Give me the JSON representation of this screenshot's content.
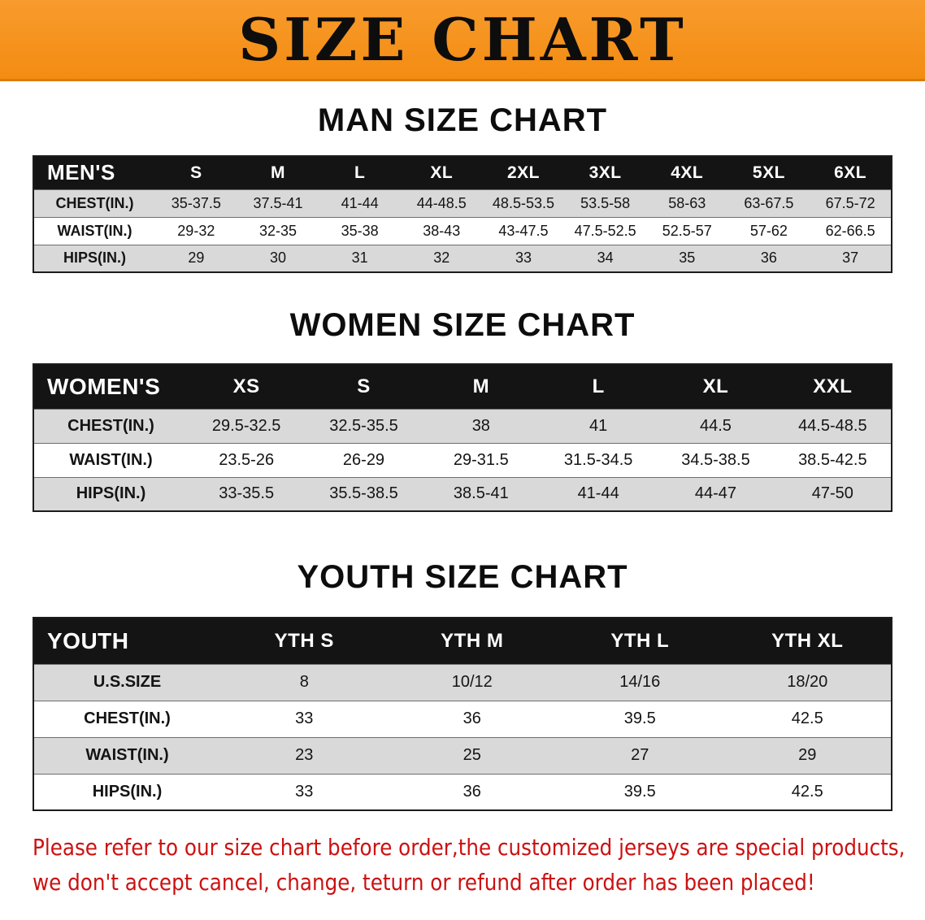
{
  "banner": {
    "title": "SIZE CHART"
  },
  "colors": {
    "banner_bg": "#F7941E",
    "table_header_bg": "#141414",
    "row_stripe": "#D9D9D9",
    "note_text": "#CC1111"
  },
  "sections": [
    {
      "heading": "MAN SIZE CHART",
      "table": {
        "header": [
          "MEN'S",
          "S",
          "M",
          "L",
          "XL",
          "2XL",
          "3XL",
          "4XL",
          "5XL",
          "6XL"
        ],
        "rows": [
          {
            "label": "CHEST(IN.)",
            "values": [
              "35-37.5",
              "37.5-41",
              "41-44",
              "44-48.5",
              "48.5-53.5",
              "53.5-58",
              "58-63",
              "63-67.5",
              "67.5-72"
            ]
          },
          {
            "label": "WAIST(IN.)",
            "values": [
              "29-32",
              "32-35",
              "35-38",
              "38-43",
              "43-47.5",
              "47.5-52.5",
              "52.5-57",
              "57-62",
              "62-66.5"
            ]
          },
          {
            "label": "HIPS(IN.)",
            "values": [
              "29",
              "30",
              "31",
              "32",
              "33",
              "34",
              "35",
              "36",
              "37"
            ]
          }
        ]
      }
    },
    {
      "heading": "WOMEN SIZE CHART",
      "table": {
        "header": [
          "WOMEN'S",
          "XS",
          "S",
          "M",
          "L",
          "XL",
          "XXL"
        ],
        "rows": [
          {
            "label": "CHEST(IN.)",
            "values": [
              "29.5-32.5",
              "32.5-35.5",
              "38",
              "41",
              "44.5",
              "44.5-48.5"
            ]
          },
          {
            "label": "WAIST(IN.)",
            "values": [
              "23.5-26",
              "26-29",
              "29-31.5",
              "31.5-34.5",
              "34.5-38.5",
              "38.5-42.5"
            ]
          },
          {
            "label": "HIPS(IN.)",
            "values": [
              "33-35.5",
              "35.5-38.5",
              "38.5-41",
              "41-44",
              "44-47",
              "47-50"
            ]
          }
        ]
      }
    },
    {
      "heading": "YOUTH SIZE CHART",
      "table": {
        "header": [
          "YOUTH",
          "YTH S",
          "YTH M",
          "YTH L",
          "YTH XL"
        ],
        "rows": [
          {
            "label": "U.S.SIZE",
            "values": [
              "8",
              "10/12",
              "14/16",
              "18/20"
            ]
          },
          {
            "label": "CHEST(IN.)",
            "values": [
              "33",
              "36",
              "39.5",
              "42.5"
            ]
          },
          {
            "label": "WAIST(IN.)",
            "values": [
              "23",
              "25",
              "27",
              "29"
            ]
          },
          {
            "label": "HIPS(IN.)",
            "values": [
              "33",
              "36",
              "39.5",
              "42.5"
            ]
          }
        ]
      }
    }
  ],
  "footer": {
    "line1": "Please refer to our size chart before order,the customized jerseys are special products,",
    "line2": "we don't accept cancel, change, teturn or refund after order has been placed!"
  }
}
